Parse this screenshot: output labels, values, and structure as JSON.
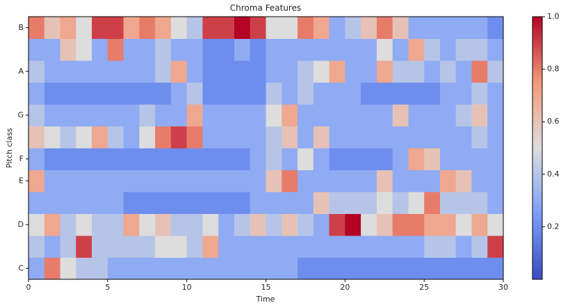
{
  "chart_data": {
    "type": "heatmap",
    "title": "Chroma Features",
    "x_label": "Time",
    "y_label": "Pitch class",
    "xlim": [
      0,
      30
    ],
    "xticks": [
      0,
      5,
      10,
      15,
      20,
      25,
      30
    ],
    "y_categories": [
      "C",
      null,
      "D",
      null,
      "E",
      "F",
      null,
      "G",
      null,
      "A",
      null,
      "B"
    ],
    "colors": [
      "#3b4cc0",
      "#7b9ff9",
      "#dddddd",
      "#f49a7b",
      "#b40426"
    ],
    "clim": [
      0,
      1
    ],
    "cticks": [
      0.2,
      0.4,
      0.6,
      0.8,
      {
        "value": 1,
        "label": "1.0"
      }
    ],
    "z": [
      [
        0.3,
        0.8,
        0.5,
        0.4,
        0.4,
        0.3,
        0.3,
        0.3,
        0.3,
        0.3,
        0.3,
        0.3,
        0.3,
        0.3,
        0.3,
        0.3,
        0.3,
        0.2,
        0.2,
        0.2,
        0.2,
        0.2,
        0.2,
        0.2,
        0.2,
        0.2,
        0.2,
        0.2,
        0.2,
        0.2
      ],
      [
        0.4,
        0.3,
        0.4,
        0.9,
        0.4,
        0.4,
        0.4,
        0.4,
        0.5,
        0.5,
        0.4,
        0.7,
        0.3,
        0.3,
        0.3,
        0.3,
        0.3,
        0.3,
        0.3,
        0.3,
        0.3,
        0.3,
        0.3,
        0.3,
        0.3,
        0.4,
        0.4,
        0.3,
        0.4,
        0.9
      ],
      [
        0.5,
        0.7,
        0.4,
        0.5,
        0.4,
        0.4,
        0.7,
        0.5,
        0.6,
        0.4,
        0.4,
        0.5,
        0.3,
        0.4,
        0.6,
        0.4,
        0.6,
        0.4,
        0.3,
        0.9,
        1.0,
        0.5,
        0.6,
        0.8,
        0.8,
        0.7,
        0.7,
        0.5,
        0.7,
        0.5
      ],
      [
        0.3,
        0.3,
        0.3,
        0.3,
        0.3,
        0.3,
        0.2,
        0.2,
        0.2,
        0.2,
        0.2,
        0.2,
        0.2,
        0.2,
        0.3,
        0.3,
        0.3,
        0.3,
        0.6,
        0.4,
        0.4,
        0.4,
        0.5,
        0.4,
        0.5,
        0.8,
        0.4,
        0.4,
        0.4,
        0.3
      ],
      [
        0.7,
        0.3,
        0.3,
        0.3,
        0.3,
        0.3,
        0.3,
        0.3,
        0.3,
        0.3,
        0.3,
        0.3,
        0.3,
        0.3,
        0.3,
        0.6,
        0.8,
        0.3,
        0.3,
        0.3,
        0.3,
        0.3,
        0.6,
        0.3,
        0.3,
        0.3,
        0.7,
        0.6,
        0.3,
        0.3
      ],
      [
        0.3,
        0.2,
        0.2,
        0.2,
        0.2,
        0.2,
        0.2,
        0.2,
        0.2,
        0.2,
        0.2,
        0.2,
        0.2,
        0.2,
        0.3,
        0.4,
        0.3,
        0.5,
        0.3,
        0.2,
        0.2,
        0.2,
        0.2,
        0.3,
        0.7,
        0.6,
        0.3,
        0.3,
        0.3,
        0.3
      ],
      [
        0.6,
        0.5,
        0.4,
        0.5,
        0.7,
        0.4,
        0.3,
        0.5,
        0.8,
        0.9,
        0.8,
        0.3,
        0.3,
        0.3,
        0.3,
        0.4,
        0.6,
        0.3,
        0.6,
        0.3,
        0.3,
        0.3,
        0.3,
        0.3,
        0.3,
        0.3,
        0.3,
        0.3,
        0.4,
        0.3
      ],
      [
        0.4,
        0.3,
        0.3,
        0.3,
        0.3,
        0.3,
        0.3,
        0.4,
        0.3,
        0.3,
        0.7,
        0.3,
        0.3,
        0.3,
        0.3,
        0.5,
        0.7,
        0.3,
        0.3,
        0.3,
        0.3,
        0.3,
        0.3,
        0.6,
        0.3,
        0.3,
        0.3,
        0.4,
        0.6,
        0.3
      ],
      [
        0.3,
        0.2,
        0.2,
        0.2,
        0.2,
        0.2,
        0.2,
        0.2,
        0.2,
        0.3,
        0.4,
        0.2,
        0.2,
        0.2,
        0.2,
        0.4,
        0.3,
        0.4,
        0.3,
        0.3,
        0.3,
        0.2,
        0.2,
        0.2,
        0.2,
        0.2,
        0.3,
        0.3,
        0.4,
        0.3
      ],
      [
        0.4,
        0.3,
        0.3,
        0.3,
        0.3,
        0.3,
        0.3,
        0.3,
        0.4,
        0.7,
        0.3,
        0.2,
        0.2,
        0.2,
        0.2,
        0.3,
        0.3,
        0.4,
        0.5,
        0.7,
        0.3,
        0.3,
        0.7,
        0.4,
        0.4,
        0.3,
        0.4,
        0.3,
        0.8,
        0.4
      ],
      [
        0.3,
        0.3,
        0.6,
        0.5,
        0.3,
        0.8,
        0.3,
        0.3,
        0.4,
        0.3,
        0.3,
        0.2,
        0.2,
        0.3,
        0.2,
        0.3,
        0.3,
        0.3,
        0.3,
        0.3,
        0.3,
        0.3,
        0.5,
        0.3,
        0.7,
        0.4,
        0.3,
        0.4,
        0.4,
        0.3
      ],
      [
        0.8,
        0.6,
        0.7,
        0.5,
        0.9,
        0.9,
        0.7,
        0.8,
        0.7,
        0.5,
        0.4,
        0.9,
        0.9,
        1.0,
        0.9,
        0.5,
        0.5,
        0.8,
        0.7,
        0.3,
        0.4,
        0.6,
        0.8,
        0.6,
        0.3,
        0.3,
        0.3,
        0.3,
        0.3,
        0.2
      ]
    ]
  }
}
